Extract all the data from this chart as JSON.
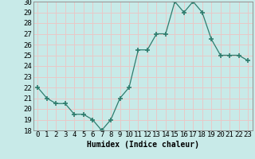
{
  "x": [
    0,
    1,
    2,
    3,
    4,
    5,
    6,
    7,
    8,
    9,
    10,
    11,
    12,
    13,
    14,
    15,
    16,
    17,
    18,
    19,
    20,
    21,
    22,
    23
  ],
  "y": [
    22,
    21,
    20.5,
    20.5,
    19.5,
    19.5,
    19,
    18,
    19,
    21,
    22,
    25.5,
    25.5,
    27,
    27,
    30,
    29,
    30,
    29,
    26.5,
    25,
    25,
    25,
    24.5
  ],
  "xlabel": "Humidex (Indice chaleur)",
  "ylim": [
    18,
    30
  ],
  "xlim": [
    -0.5,
    23.5
  ],
  "yticks": [
    18,
    19,
    20,
    21,
    22,
    23,
    24,
    25,
    26,
    27,
    28,
    29,
    30
  ],
  "xticks": [
    0,
    1,
    2,
    3,
    4,
    5,
    6,
    7,
    8,
    9,
    10,
    11,
    12,
    13,
    14,
    15,
    16,
    17,
    18,
    19,
    20,
    21,
    22,
    23
  ],
  "line_color": "#2e7d6e",
  "marker_color": "#2e7d6e",
  "bg_color": "#c8eae8",
  "grid_color": "#e8c8c8",
  "xlabel_fontsize": 7,
  "tick_fontsize": 6.5
}
